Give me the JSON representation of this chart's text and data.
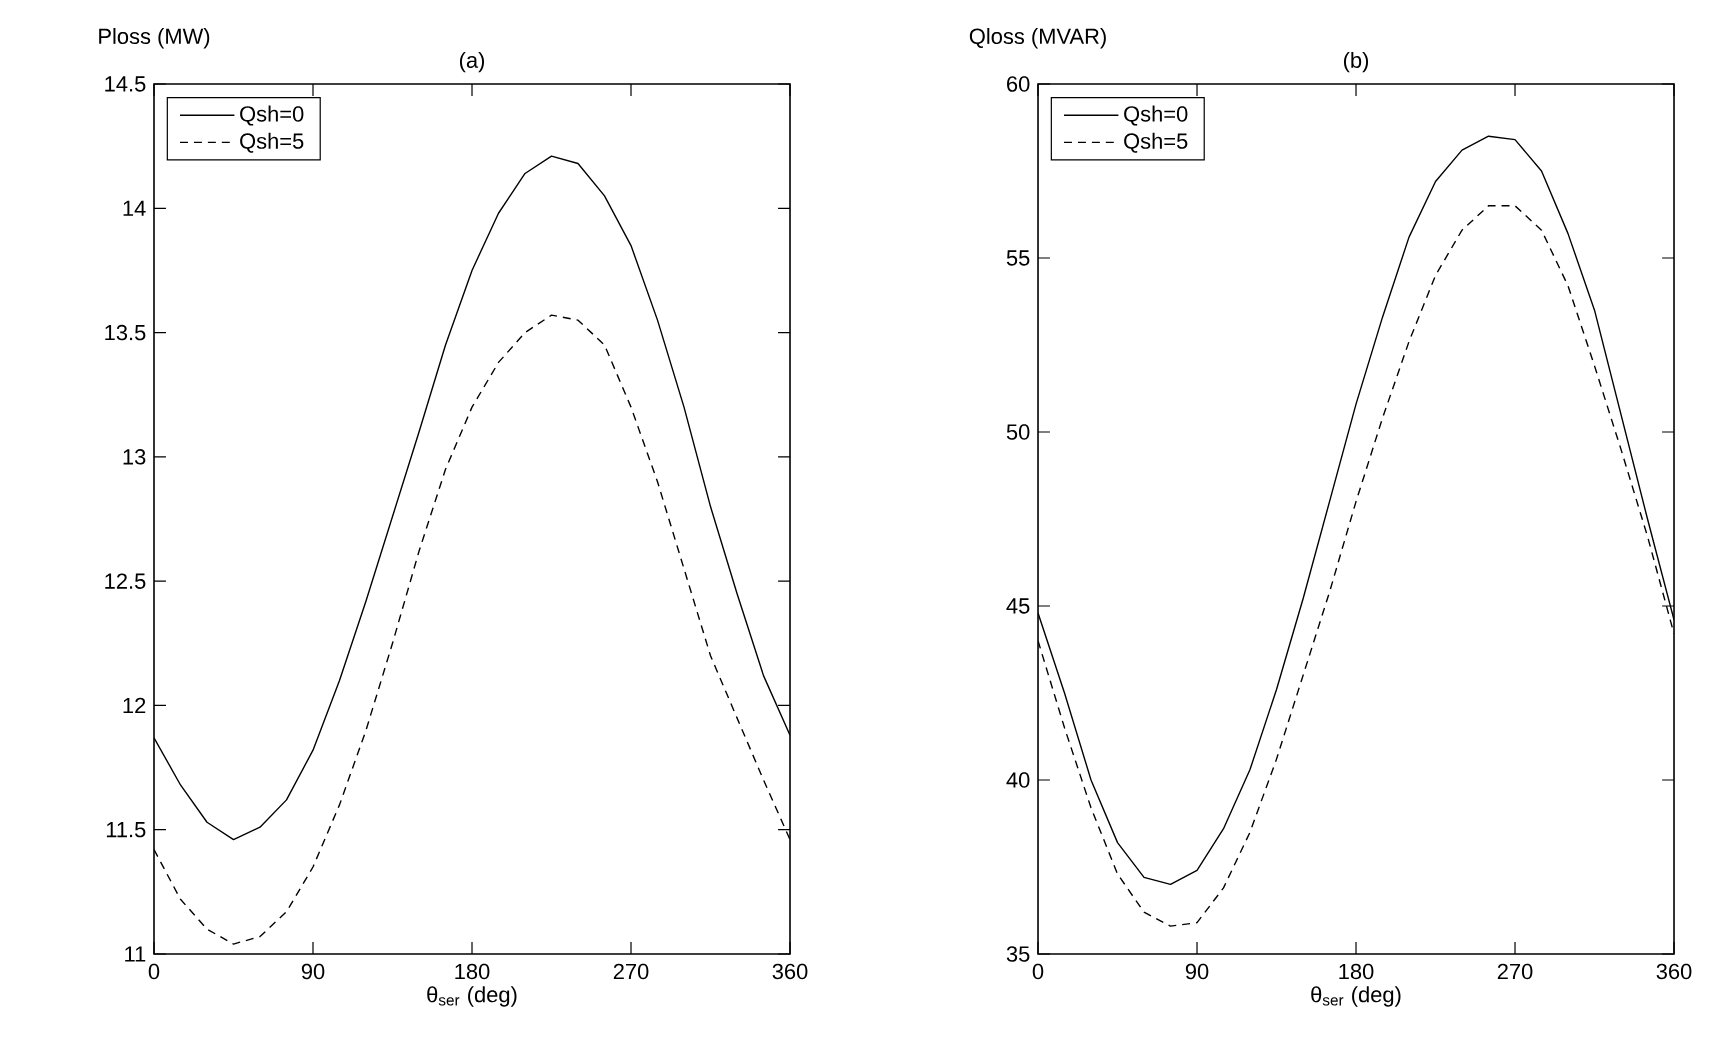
{
  "chart_data": [
    {
      "type": "line",
      "title": "(a)",
      "xlabel": "θ$_{ser}$ (deg)",
      "ylabel": "Ploss (MW)",
      "x": [
        0,
        15,
        30,
        45,
        60,
        75,
        90,
        105,
        120,
        135,
        150,
        165,
        180,
        195,
        210,
        225,
        240,
        255,
        270,
        285,
        300,
        315,
        330,
        345,
        360
      ],
      "xlim": [
        0,
        360
      ],
      "xticks": [
        0,
        90,
        180,
        270,
        360
      ],
      "ylim": [
        11,
        14.5
      ],
      "yticks": [
        11,
        11.5,
        12,
        12.5,
        13,
        13.5,
        14,
        14.5
      ],
      "legend": "top left",
      "series": [
        {
          "name": "Qsh=0",
          "color": "#000000",
          "line_style": "solid",
          "values": [
            11.87,
            11.68,
            11.53,
            11.46,
            11.51,
            11.62,
            11.82,
            12.1,
            12.42,
            12.76,
            13.1,
            13.45,
            13.75,
            13.98,
            14.14,
            14.21,
            14.18,
            14.05,
            13.85,
            13.55,
            13.2,
            12.8,
            12.45,
            12.12,
            11.88
          ]
        },
        {
          "name": "Qsh=5",
          "color": "#000000",
          "line_style": "dashed",
          "values": [
            11.42,
            11.22,
            11.1,
            11.04,
            11.07,
            11.17,
            11.35,
            11.6,
            11.9,
            12.25,
            12.62,
            12.95,
            13.2,
            13.38,
            13.5,
            13.57,
            13.55,
            13.45,
            13.2,
            12.9,
            12.55,
            12.2,
            11.95,
            11.7,
            11.46
          ]
        }
      ]
    },
    {
      "type": "line",
      "title": "(b)",
      "xlabel": "θ$_{ser}$ (deg)",
      "ylabel": "Qloss (MVAR)",
      "x": [
        0,
        15,
        30,
        45,
        60,
        75,
        90,
        105,
        120,
        135,
        150,
        165,
        180,
        195,
        210,
        225,
        240,
        255,
        270,
        285,
        300,
        315,
        330,
        345,
        360
      ],
      "xlim": [
        0,
        360
      ],
      "xticks": [
        0,
        90,
        180,
        270,
        360
      ],
      "ylim": [
        35,
        60
      ],
      "yticks": [
        35,
        40,
        45,
        50,
        55,
        60
      ],
      "legend": "top left",
      "series": [
        {
          "name": "Qsh=0",
          "color": "#000000",
          "line_style": "solid",
          "values": [
            44.8,
            42.5,
            40,
            38.2,
            37.2,
            37,
            37.4,
            38.6,
            40.3,
            42.6,
            45.2,
            48,
            50.8,
            53.3,
            55.6,
            57.2,
            58.1,
            58.5,
            58.4,
            57.5,
            55.7,
            53.5,
            50.5,
            47.5,
            44.6
          ]
        },
        {
          "name": "Qsh=5",
          "color": "#000000",
          "line_style": "dashed",
          "values": [
            44,
            41.5,
            39.2,
            37.3,
            36.2,
            35.8,
            35.9,
            36.9,
            38.5,
            40.6,
            43,
            45.4,
            48,
            50.4,
            52.6,
            54.5,
            55.8,
            56.5,
            56.5,
            55.8,
            54.2,
            51.9,
            49.5,
            47,
            44.2
          ]
        }
      ]
    }
  ]
}
